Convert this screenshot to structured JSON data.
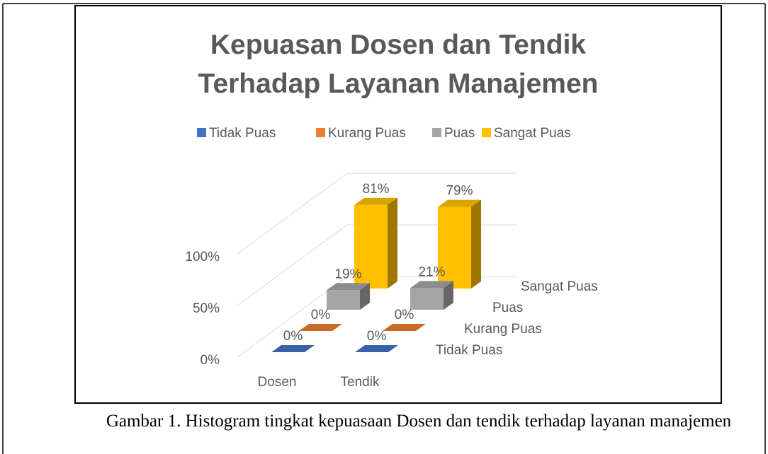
{
  "chart_data": {
    "type": "bar3d",
    "title": "Kepuasan Dosen dan Tendik Terhadap Layanan Manajemen",
    "categories": [
      "Dosen",
      "Tendik"
    ],
    "series": [
      {
        "name": "Tidak Puas",
        "color": "#4472c4",
        "values": [
          0,
          0
        ],
        "value_labels": [
          "0%",
          "0%"
        ]
      },
      {
        "name": "Kurang Puas",
        "color": "#ed7d31",
        "values": [
          0,
          0
        ],
        "value_labels": [
          "0%",
          "0%"
        ]
      },
      {
        "name": "Puas",
        "color": "#a5a5a5",
        "values": [
          19,
          21
        ],
        "value_labels": [
          "19%",
          "21%"
        ]
      },
      {
        "name": "Sangat Puas",
        "color": "#ffc000",
        "values": [
          81,
          79
        ],
        "value_labels": [
          "81%",
          "79%"
        ]
      }
    ],
    "ylim": [
      0,
      100
    ],
    "yticks": [
      {
        "value": 0,
        "label": "0%"
      },
      {
        "value": 50,
        "label": "50%"
      },
      {
        "value": 100,
        "label": "100%"
      }
    ],
    "grid": true,
    "legend": "top",
    "caption": "Gambar 1. Histogram tingkat kepuasaan Dosen dan tendik terhadap layanan manajemen"
  }
}
